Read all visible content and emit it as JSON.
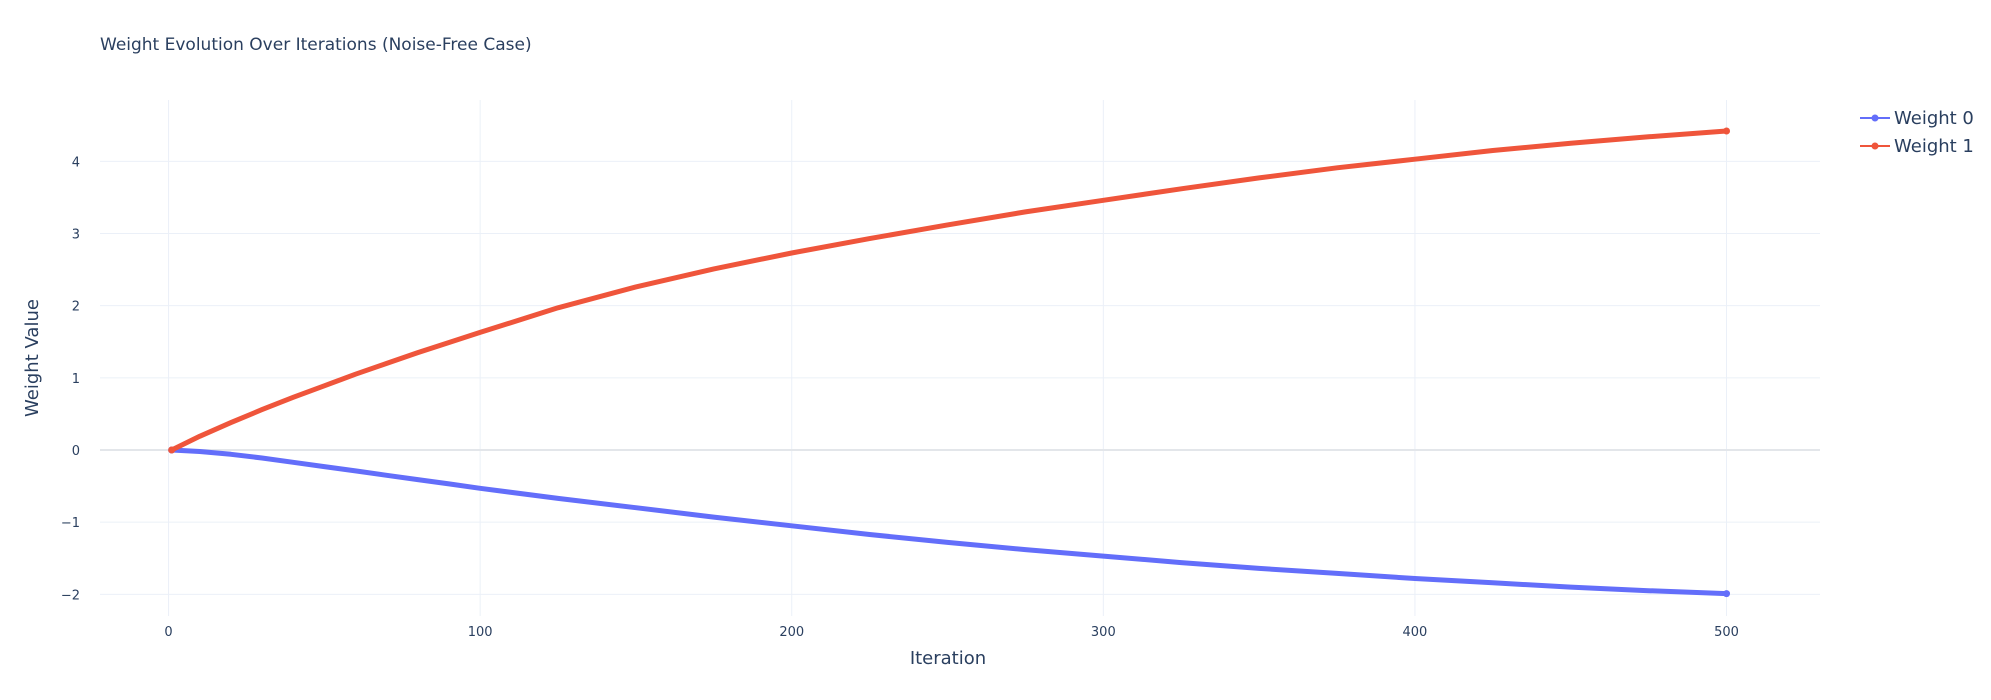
{
  "chart_data": {
    "type": "line",
    "title": "Weight Evolution Over Iterations (Noise-Free Case)",
    "xlabel": "Iteration",
    "ylabel": "Weight Value",
    "xlim": [
      -22,
      530
    ],
    "ylim": [
      -2.3,
      4.85
    ],
    "xticks": [
      0,
      100,
      200,
      300,
      400,
      500
    ],
    "yticks": [
      -2,
      -1,
      0,
      1,
      2,
      3,
      4
    ],
    "grid": true,
    "legend": "top-right",
    "series": [
      {
        "name": "Weight 0",
        "color": "#636efa",
        "x": [
          1,
          10,
          20,
          30,
          40,
          50,
          60,
          70,
          80,
          90,
          100,
          125,
          150,
          175,
          200,
          225,
          250,
          275,
          300,
          325,
          350,
          375,
          400,
          425,
          450,
          475,
          500
        ],
        "y": [
          0.0,
          -0.02,
          -0.06,
          -0.11,
          -0.17,
          -0.23,
          -0.29,
          -0.35,
          -0.41,
          -0.47,
          -0.53,
          -0.67,
          -0.8,
          -0.93,
          -1.05,
          -1.17,
          -1.28,
          -1.38,
          -1.47,
          -1.56,
          -1.64,
          -1.71,
          -1.78,
          -1.84,
          -1.9,
          -1.95,
          -1.99
        ]
      },
      {
        "name": "Weight 1",
        "color": "#ef553b",
        "x": [
          1,
          10,
          20,
          30,
          40,
          50,
          60,
          70,
          80,
          90,
          100,
          125,
          150,
          175,
          200,
          225,
          250,
          275,
          300,
          325,
          350,
          375,
          400,
          425,
          450,
          475,
          500
        ],
        "y": [
          0.0,
          0.19,
          0.38,
          0.56,
          0.73,
          0.89,
          1.05,
          1.2,
          1.35,
          1.49,
          1.63,
          1.97,
          2.26,
          2.51,
          2.73,
          2.93,
          3.12,
          3.3,
          3.46,
          3.62,
          3.77,
          3.91,
          4.03,
          4.15,
          4.25,
          4.34,
          4.42
        ]
      }
    ]
  }
}
